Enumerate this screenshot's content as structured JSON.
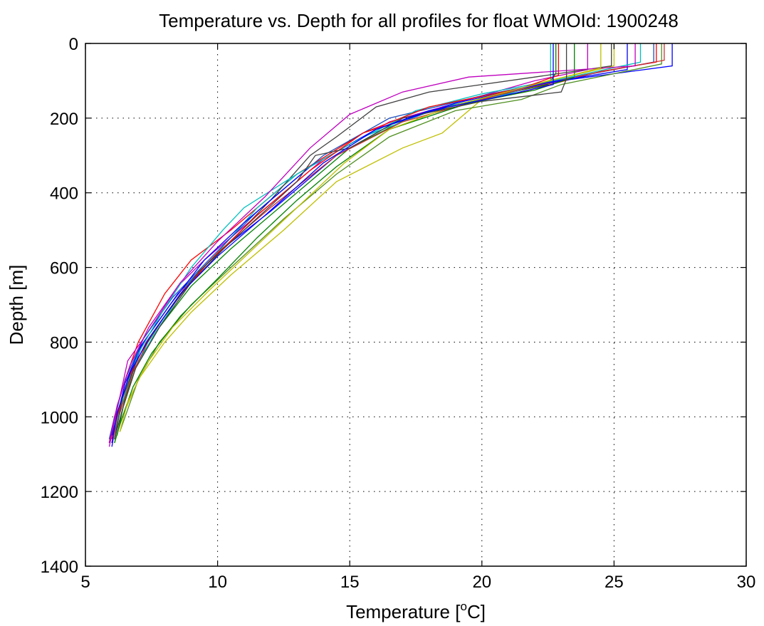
{
  "chart_data": {
    "type": "line",
    "title": "Temperature vs. Depth for all profiles for float WMOId: 1900248",
    "xlabel_main": "Temperature [",
    "xlabel_sup": "o",
    "xlabel_tail": "C]",
    "ylabel": "Depth [m]",
    "xlim": [
      5,
      30
    ],
    "ylim": [
      0,
      1400
    ],
    "y_inverted": true,
    "grid": true,
    "legend": "none",
    "x_ticks": [
      5,
      10,
      15,
      20,
      25,
      30
    ],
    "x_tick_labels": [
      "5",
      "10",
      "15",
      "20",
      "25",
      "30"
    ],
    "y_ticks": [
      0,
      200,
      400,
      600,
      800,
      1000,
      1200,
      1400
    ],
    "y_tick_labels": [
      "0",
      "200",
      "400",
      "600",
      "800",
      "1000",
      "1200",
      "1400"
    ],
    "colors": [
      "#0000ff",
      "#008000",
      "#ff0000",
      "#00bfbf",
      "#bf00bf",
      "#bfbf00",
      "#404040",
      "#1f4fbf",
      "#4f8f1f",
      "#d03030"
    ],
    "series": [
      {
        "color": "#ff0000",
        "points": [
          [
            26.6,
            0
          ],
          [
            26.6,
            50
          ],
          [
            24.5,
            75
          ],
          [
            21.5,
            130
          ],
          [
            18.5,
            170
          ],
          [
            15.5,
            240
          ],
          [
            13.0,
            350
          ],
          [
            10.5,
            500
          ],
          [
            9.0,
            580
          ],
          [
            8.0,
            670
          ],
          [
            7.0,
            800
          ],
          [
            6.5,
            900
          ],
          [
            6.1,
            1000
          ],
          [
            5.9,
            1070
          ]
        ]
      },
      {
        "color": "#0000ff",
        "points": [
          [
            27.2,
            0
          ],
          [
            27.2,
            60
          ],
          [
            23.0,
            100
          ],
          [
            20.0,
            150
          ],
          [
            17.0,
            200
          ],
          [
            14.5,
            300
          ],
          [
            12.0,
            450
          ],
          [
            10.0,
            560
          ],
          [
            8.5,
            670
          ],
          [
            7.2,
            800
          ],
          [
            6.6,
            900
          ],
          [
            6.2,
            1000
          ],
          [
            6.0,
            1080
          ]
        ]
      },
      {
        "color": "#008000",
        "points": [
          [
            22.8,
            0
          ],
          [
            22.8,
            80
          ],
          [
            22.5,
            110
          ],
          [
            20.5,
            140
          ],
          [
            17.5,
            190
          ],
          [
            15.0,
            280
          ],
          [
            12.5,
            430
          ],
          [
            10.5,
            550
          ],
          [
            9.0,
            650
          ],
          [
            7.8,
            760
          ],
          [
            7.0,
            850
          ],
          [
            6.5,
            950
          ],
          [
            6.2,
            1050
          ]
        ]
      },
      {
        "color": "#00bfbf",
        "points": [
          [
            22.6,
            0
          ],
          [
            22.6,
            100
          ],
          [
            21.0,
            135
          ],
          [
            18.5,
            170
          ],
          [
            15.5,
            250
          ],
          [
            13.0,
            350
          ],
          [
            11.5,
            440
          ],
          [
            10.0,
            560
          ],
          [
            8.8,
            650
          ],
          [
            7.6,
            780
          ],
          [
            6.8,
            880
          ],
          [
            6.3,
            980
          ],
          [
            6.0,
            1060
          ]
        ]
      },
      {
        "color": "#bf00bf",
        "points": [
          [
            24.0,
            0
          ],
          [
            24.0,
            70
          ],
          [
            22.0,
            100
          ],
          [
            19.5,
            150
          ],
          [
            16.5,
            210
          ],
          [
            14.0,
            310
          ],
          [
            11.5,
            460
          ],
          [
            9.5,
            580
          ],
          [
            8.5,
            650
          ],
          [
            7.3,
            780
          ],
          [
            6.6,
            850
          ],
          [
            6.2,
            980
          ],
          [
            5.9,
            1080
          ]
        ]
      },
      {
        "color": "#bfbf00",
        "points": [
          [
            25.0,
            0
          ],
          [
            25.0,
            60
          ],
          [
            22.5,
            100
          ],
          [
            20.0,
            150
          ],
          [
            18.5,
            240
          ],
          [
            17.0,
            280
          ],
          [
            14.5,
            370
          ],
          [
            12.5,
            500
          ],
          [
            10.5,
            620
          ],
          [
            9.0,
            720
          ],
          [
            8.0,
            800
          ],
          [
            7.0,
            900
          ],
          [
            6.4,
            1000
          ],
          [
            6.1,
            1070
          ]
        ]
      },
      {
        "color": "#404040",
        "points": [
          [
            24.9,
            0
          ],
          [
            24.9,
            60
          ],
          [
            22.0,
            90
          ],
          [
            18.0,
            130
          ],
          [
            16.0,
            170
          ],
          [
            14.5,
            250
          ],
          [
            13.5,
            300
          ],
          [
            12.0,
            420
          ],
          [
            10.5,
            530
          ],
          [
            9.0,
            640
          ],
          [
            7.8,
            760
          ],
          [
            6.9,
            870
          ],
          [
            6.4,
            980
          ],
          [
            6.1,
            1060
          ]
        ]
      },
      {
        "color": "#1f4fbf",
        "points": [
          [
            26.5,
            0
          ],
          [
            26.5,
            50
          ],
          [
            23.5,
            90
          ],
          [
            20.0,
            140
          ],
          [
            16.5,
            200
          ],
          [
            14.0,
            300
          ],
          [
            11.5,
            450
          ],
          [
            9.8,
            570
          ],
          [
            8.3,
            680
          ],
          [
            7.2,
            790
          ],
          [
            6.5,
            900
          ],
          [
            6.1,
            1000
          ],
          [
            5.9,
            1060
          ]
        ]
      },
      {
        "color": "#4f8f1f",
        "points": [
          [
            26.8,
            0
          ],
          [
            26.8,
            55
          ],
          [
            23.0,
            110
          ],
          [
            21.5,
            150
          ],
          [
            19.0,
            180
          ],
          [
            16.5,
            250
          ],
          [
            14.5,
            350
          ],
          [
            12.5,
            470
          ],
          [
            10.5,
            600
          ],
          [
            9.0,
            700
          ],
          [
            7.8,
            800
          ],
          [
            7.0,
            900
          ],
          [
            6.5,
            1000
          ],
          [
            6.3,
            1040
          ]
        ]
      },
      {
        "color": "#d03030",
        "points": [
          [
            26.9,
            0
          ],
          [
            26.9,
            45
          ],
          [
            23.8,
            85
          ],
          [
            20.5,
            140
          ],
          [
            17.0,
            210
          ],
          [
            14.5,
            300
          ],
          [
            12.0,
            440
          ],
          [
            10.0,
            560
          ],
          [
            8.7,
            660
          ],
          [
            7.5,
            780
          ],
          [
            6.8,
            880
          ],
          [
            6.3,
            990
          ],
          [
            6.0,
            1070
          ]
        ]
      },
      {
        "color": "#0000ff",
        "points": [
          [
            25.5,
            0
          ],
          [
            25.5,
            70
          ],
          [
            22.5,
            105
          ],
          [
            19.0,
            160
          ],
          [
            16.0,
            230
          ],
          [
            13.5,
            330
          ],
          [
            11.0,
            480
          ],
          [
            9.5,
            580
          ],
          [
            8.2,
            700
          ],
          [
            7.1,
            810
          ],
          [
            6.5,
            910
          ],
          [
            6.2,
            1000
          ],
          [
            6.0,
            1050
          ]
        ]
      },
      {
        "color": "#008000",
        "points": [
          [
            23.5,
            0
          ],
          [
            23.5,
            90
          ],
          [
            22.0,
            125
          ],
          [
            19.5,
            160
          ],
          [
            16.5,
            230
          ],
          [
            14.5,
            330
          ],
          [
            13.0,
            420
          ],
          [
            11.5,
            520
          ],
          [
            10.0,
            630
          ],
          [
            8.6,
            730
          ],
          [
            7.5,
            830
          ],
          [
            6.8,
            920
          ],
          [
            6.3,
            1020
          ],
          [
            6.1,
            1070
          ]
        ]
      },
      {
        "color": "#00bfbf",
        "points": [
          [
            26.0,
            0
          ],
          [
            26.0,
            50
          ],
          [
            23.0,
            95
          ],
          [
            20.0,
            135
          ],
          [
            17.5,
            180
          ],
          [
            15.0,
            270
          ],
          [
            13.0,
            350
          ],
          [
            11.0,
            440
          ],
          [
            10.2,
            500
          ],
          [
            9.0,
            600
          ],
          [
            7.9,
            720
          ],
          [
            7.0,
            830
          ],
          [
            6.4,
            950
          ],
          [
            6.1,
            1060
          ]
        ]
      },
      {
        "color": "#ff0000",
        "points": [
          [
            22.9,
            0
          ],
          [
            22.9,
            85
          ],
          [
            21.5,
            120
          ],
          [
            18.0,
            170
          ],
          [
            15.5,
            240
          ],
          [
            13.5,
            340
          ],
          [
            11.5,
            460
          ],
          [
            9.6,
            590
          ],
          [
            8.4,
            690
          ],
          [
            7.3,
            800
          ],
          [
            6.6,
            900
          ],
          [
            6.2,
            1000
          ],
          [
            6.0,
            1060
          ]
        ]
      },
      {
        "color": "#bf00bf",
        "points": [
          [
            25.8,
            0
          ],
          [
            25.8,
            60
          ],
          [
            19.5,
            90
          ],
          [
            17.0,
            130
          ],
          [
            15.0,
            190
          ],
          [
            13.5,
            280
          ],
          [
            11.8,
            410
          ],
          [
            10.0,
            530
          ],
          [
            8.6,
            640
          ],
          [
            7.4,
            760
          ],
          [
            6.7,
            860
          ],
          [
            6.2,
            970
          ],
          [
            5.9,
            1070
          ]
        ]
      },
      {
        "color": "#bfbf00",
        "points": [
          [
            24.5,
            0
          ],
          [
            24.5,
            65
          ],
          [
            22.0,
            110
          ],
          [
            19.0,
            165
          ],
          [
            16.5,
            230
          ],
          [
            14.8,
            320
          ],
          [
            13.0,
            440
          ],
          [
            11.2,
            560
          ],
          [
            9.7,
            660
          ],
          [
            8.3,
            760
          ],
          [
            7.3,
            860
          ],
          [
            6.6,
            960
          ],
          [
            6.3,
            1040
          ]
        ]
      },
      {
        "color": "#404040",
        "points": [
          [
            23.2,
            0
          ],
          [
            23.2,
            95
          ],
          [
            23.0,
            130
          ],
          [
            20.0,
            155
          ],
          [
            17.0,
            200
          ],
          [
            15.0,
            280
          ],
          [
            13.7,
            300
          ],
          [
            13.0,
            370
          ],
          [
            11.0,
            500
          ],
          [
            9.3,
            610
          ],
          [
            8.0,
            730
          ],
          [
            7.0,
            840
          ],
          [
            6.4,
            950
          ],
          [
            6.1,
            1060
          ]
        ]
      },
      {
        "color": "#0000ff",
        "points": [
          [
            22.7,
            0
          ],
          [
            22.7,
            110
          ],
          [
            20.5,
            145
          ],
          [
            18.0,
            180
          ],
          [
            16.0,
            230
          ],
          [
            14.0,
            320
          ],
          [
            11.8,
            460
          ],
          [
            10.0,
            570
          ],
          [
            8.6,
            670
          ],
          [
            7.4,
            790
          ],
          [
            6.7,
            880
          ],
          [
            6.2,
            990
          ],
          [
            6.0,
            1070
          ]
        ]
      }
    ]
  }
}
